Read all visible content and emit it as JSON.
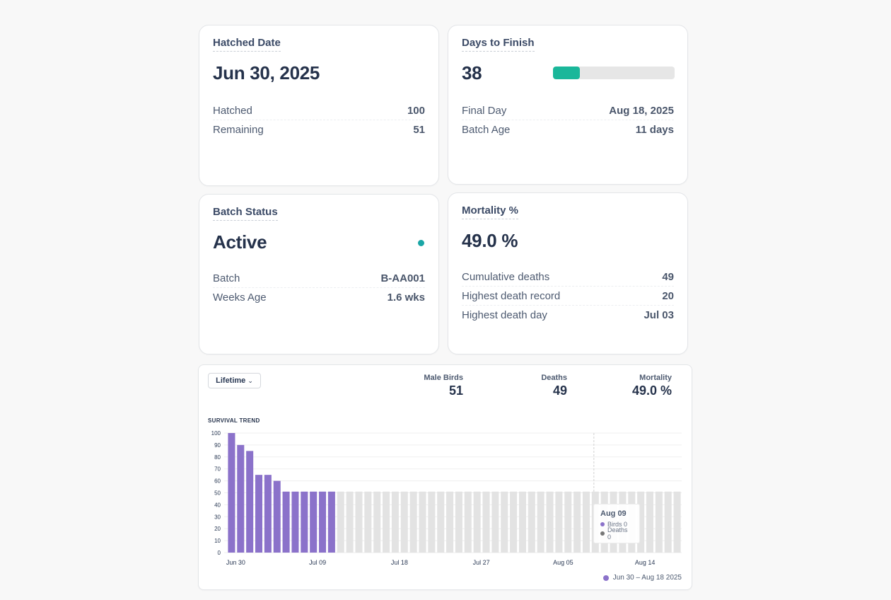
{
  "hatched_card": {
    "title": "Hatched Date",
    "value": "Jun 30, 2025",
    "rows": [
      {
        "label": "Hatched",
        "value": "100"
      },
      {
        "label": "Remaining",
        "value": "51"
      }
    ]
  },
  "days_card": {
    "title": "Days to Finish",
    "value": "38",
    "progress_fraction": 0.22,
    "progress_color": "#1ab79a",
    "rows": [
      {
        "label": "Final Day",
        "value": "Aug 18, 2025"
      },
      {
        "label": "Batch Age",
        "value": "11 days"
      }
    ]
  },
  "status_card": {
    "title": "Batch Status",
    "value": "Active",
    "status_color": "#1aa6a6",
    "rows": [
      {
        "label": "Batch",
        "value": "B-AA001"
      },
      {
        "label": "Weeks Age",
        "value": "1.6 wks"
      }
    ]
  },
  "mortality_card": {
    "title": "Mortality %",
    "value": "49.0 %",
    "rows": [
      {
        "label": "Cumulative deaths",
        "value": "49"
      },
      {
        "label": "Highest death record",
        "value": "20"
      },
      {
        "label": "Highest death day",
        "value": "Jul 03"
      }
    ]
  },
  "trend_card": {
    "range_select": "Lifetime",
    "stats": [
      {
        "label": "Male Birds",
        "value": "51"
      },
      {
        "label": "Deaths",
        "value": "49"
      },
      {
        "label": "Mortality",
        "value": "49.0 %"
      }
    ],
    "legend_label": "Jun 30 – Aug 18 2025",
    "tooltip": {
      "title": "Aug 09",
      "rows": [
        {
          "label": "Birds 0",
          "color": "#8b72ca"
        },
        {
          "label": "Deaths 0",
          "color": "#777777"
        }
      ]
    }
  },
  "chart_data": {
    "type": "bar",
    "title": "SURVIVAL TREND",
    "ylim": [
      0,
      100
    ],
    "yticks": [
      0,
      10,
      20,
      30,
      40,
      50,
      60,
      70,
      80,
      90,
      100
    ],
    "xticks": [
      {
        "label": "Jun 30",
        "index": 0
      },
      {
        "label": "Jul 09",
        "index": 9
      },
      {
        "label": "Jul 18",
        "index": 18
      },
      {
        "label": "Jul 27",
        "index": 27
      },
      {
        "label": "Aug 05",
        "index": 36
      },
      {
        "label": "Aug 14",
        "index": 45
      }
    ],
    "bar_count": 50,
    "series": [
      {
        "name": "Birds",
        "color": "#8b72ca",
        "values": [
          100,
          90,
          85,
          65,
          65,
          60,
          51,
          51,
          51,
          51,
          51,
          51
        ]
      },
      {
        "name": "Projected",
        "color": "#e3e3e3",
        "constant_value": 51
      }
    ],
    "hover_index": 40
  }
}
